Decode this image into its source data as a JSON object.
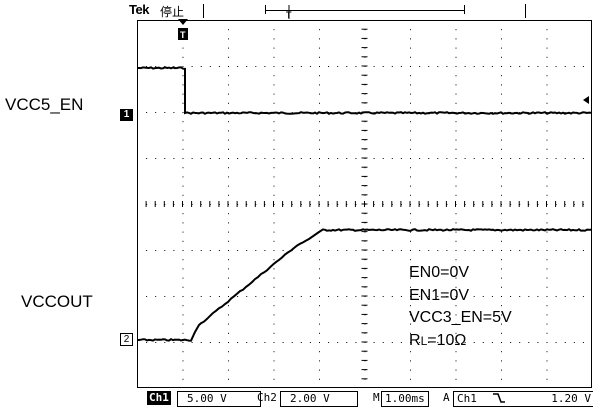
{
  "header": {
    "brand": "Tek",
    "run_status": "停止",
    "trigger_position_marker": "T"
  },
  "signals": {
    "ch1_name": "VCC5_EN",
    "ch2_name": "VCCOUT"
  },
  "markers": {
    "ch1": "1",
    "ch2": "2"
  },
  "conditions": {
    "en0": "EN0=0V",
    "en1": "EN1=0V",
    "vcc3_en": "VCC3_EN=5V",
    "rl_prefix": "R",
    "rl_subscript": "L",
    "rl_value": "=10Ω"
  },
  "status_bar": {
    "ch1_label": "Ch1",
    "ch1_scale": "5.00 V",
    "ch2_label": "Ch2",
    "ch2_scale": "2.00 V",
    "timebase_prefix": "M",
    "timebase": "1.00ms",
    "trigger_prefix": "A",
    "trigger_source": "Ch1",
    "trigger_slope_icon": "falling-edge-icon",
    "trigger_level": "1.20 V"
  },
  "colors": {
    "trace": "#000000",
    "graticule": "#000000",
    "background": "#ffffff"
  }
}
